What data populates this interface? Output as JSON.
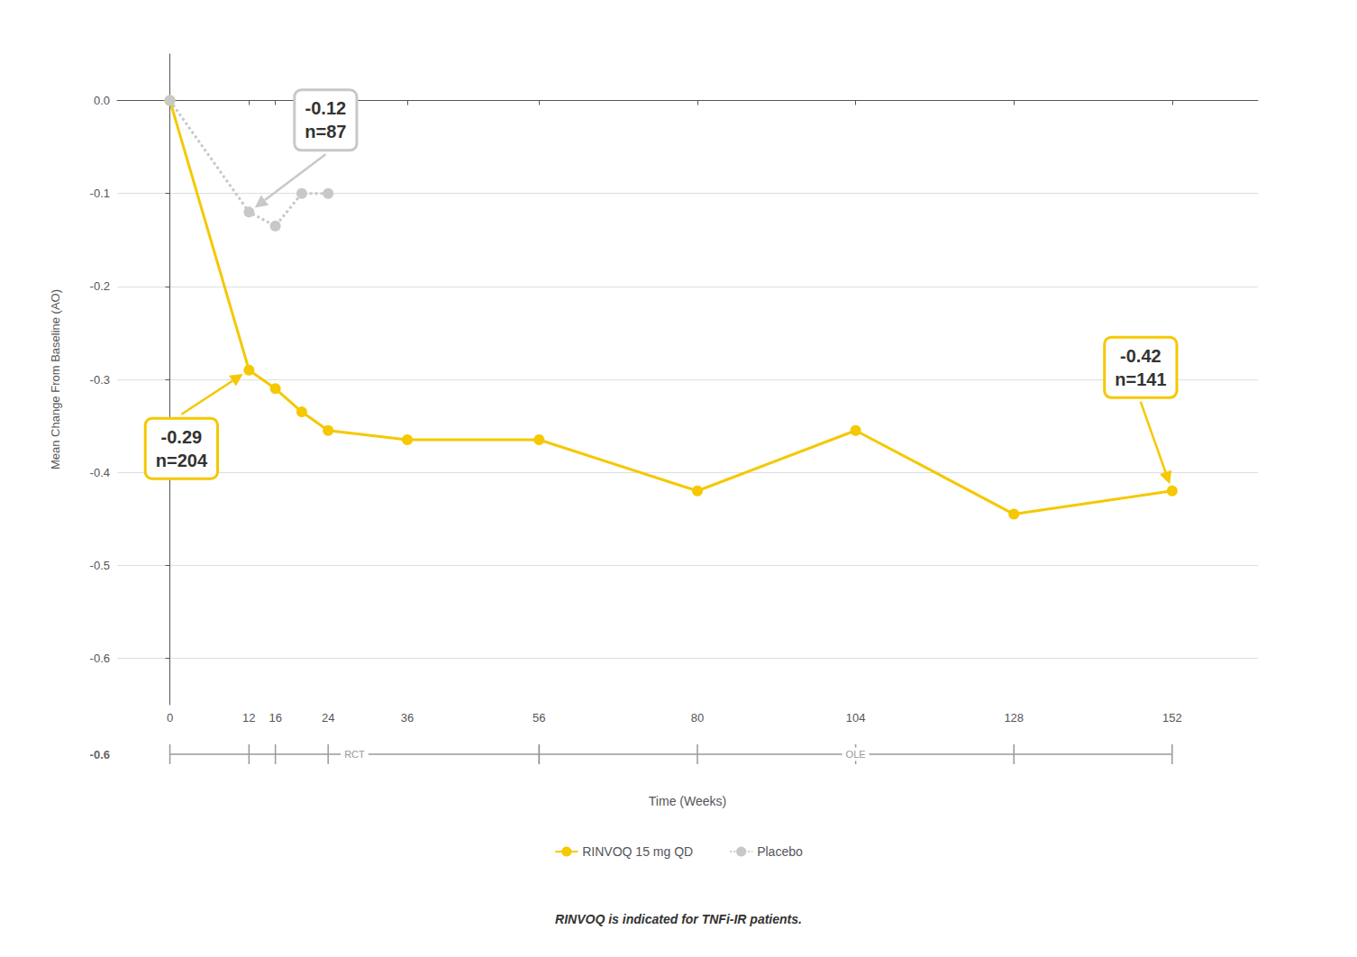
{
  "chart_data": {
    "type": "line",
    "xlabel": "Time (Weeks)",
    "ylabel": "Mean Change From Baseline (AO)",
    "note": "RINVOQ is indicated for TNFi-IR patients.",
    "series": [
      {
        "name": "RINVOQ 15 mg QD",
        "color": "#F5C800",
        "marker": "circle",
        "line_style": "solid",
        "x": [
          0,
          12,
          16,
          20,
          24,
          36,
          56,
          80,
          104,
          128,
          152
        ],
        "values": [
          0.0,
          -0.29,
          -0.31,
          -0.335,
          -0.355,
          -0.365,
          -0.365,
          -0.42,
          -0.355,
          -0.445,
          -0.42
        ]
      },
      {
        "name": "Placebo",
        "color": "#C8C8C8",
        "marker": "circle",
        "line_style": "dotted",
        "x": [
          0,
          12,
          16,
          20,
          24
        ],
        "values": [
          0.0,
          -0.12,
          -0.135,
          -0.1,
          -0.1
        ]
      }
    ],
    "xlim": [
      -8,
      165
    ],
    "xticks": [
      0,
      12,
      16,
      24,
      36,
      56,
      80,
      104,
      128,
      152
    ],
    "ylim": [
      -0.65,
      0.05
    ],
    "yticks": [
      {
        "value": 0.0,
        "label": "0.0"
      },
      -0.1,
      -0.2,
      -0.3,
      -0.4,
      -0.5,
      -0.6
    ],
    "grid": true,
    "legend": "bottom",
    "annotations": [
      {
        "text": "-0.29\nn=204",
        "x": 12,
        "y": -0.29,
        "color": "#F5C800"
      },
      {
        "text": "-0.12\nn=87",
        "x": 12,
        "y": -0.12,
        "color": "#C8C8C8"
      },
      {
        "text": "-0.42\nn=141",
        "x": 152,
        "y": -0.42,
        "color": "#F5C800"
      }
    ],
    "timeline": {
      "label": "-0.6",
      "color": "#999999",
      "segments": [
        {
          "label": "RCT",
          "ticks": [
            0,
            12,
            16,
            24,
            56
          ]
        },
        {
          "label": "OLE",
          "ticks": [
            56,
            80,
            104,
            128,
            152
          ]
        }
      ]
    }
  }
}
